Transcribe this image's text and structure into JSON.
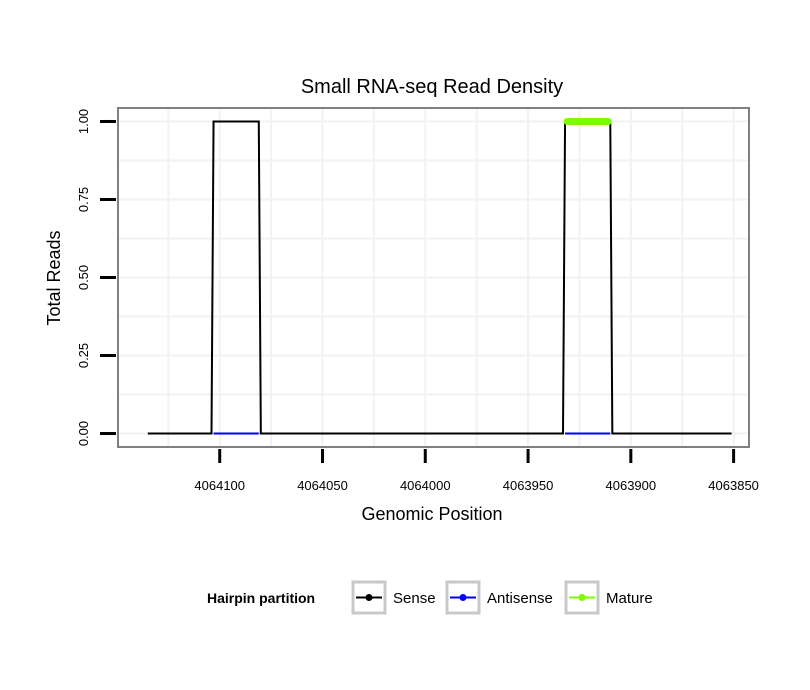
{
  "chart_data": {
    "type": "line",
    "title": "Small RNA-seq Read Density",
    "xlabel": "Genomic Position",
    "ylabel": "Total Reads",
    "x_reversed": true,
    "xlim": [
      4064149,
      4063843
    ],
    "ylim": [
      -0.04,
      1.04
    ],
    "x_ticks": [
      4064100,
      4064050,
      4064000,
      4063950,
      4063900,
      4063850
    ],
    "x_tick_labels": [
      "4064100",
      "4064050",
      "4064000",
      "4063950",
      "4063900",
      "4063850"
    ],
    "y_ticks": [
      0,
      0.25,
      0.5,
      0.75,
      1
    ],
    "y_tick_labels": [
      "0.00",
      "0.25",
      "0.50",
      "0.75",
      "1.00"
    ],
    "grid": true,
    "legend": {
      "title": "Hairpin partition",
      "position": "bottom",
      "entries": [
        "Sense",
        "Antisense",
        "Mature"
      ]
    },
    "series": [
      {
        "name": "Sense",
        "color": "#000000",
        "points": [
          [
            4064135,
            0
          ],
          [
            4064104,
            0
          ],
          [
            4064103,
            1
          ],
          [
            4064081,
            1
          ],
          [
            4064080,
            0
          ],
          [
            4063933,
            0
          ],
          [
            4063932,
            1
          ],
          [
            4063910,
            1
          ],
          [
            4063909,
            0
          ],
          [
            4063851,
            0
          ]
        ]
      },
      {
        "name": "Antisense",
        "color": "#0000ff",
        "points": [
          [
            4064103,
            0
          ],
          [
            4064081,
            0
          ],
          [
            4063932,
            0
          ],
          [
            4063910,
            0
          ]
        ],
        "segments": [
          [
            0,
            1
          ],
          [
            2,
            3
          ]
        ]
      },
      {
        "name": "Mature",
        "color": "#7cfc00",
        "points": [
          [
            4063931,
            1
          ],
          [
            4063911,
            1
          ]
        ]
      }
    ]
  }
}
